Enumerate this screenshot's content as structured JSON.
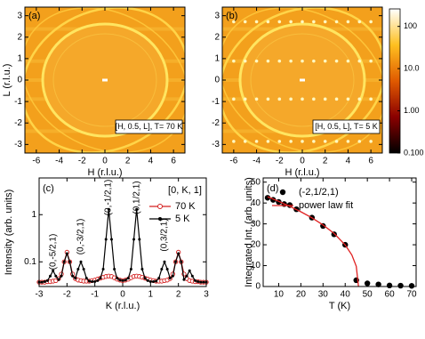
{
  "chart_data": [
    {
      "type": "heatmap",
      "panel_label": "(a)",
      "annotation": "[H, 0.5, L], T= 70 K",
      "x_label": "H (r.l.u.)",
      "y_label": "L (r.l.u.)",
      "xlim": [
        -7,
        7
      ],
      "ylim": [
        -3.4,
        3.4
      ],
      "xticks": [
        -6,
        -4,
        -2,
        0,
        2,
        4,
        6
      ],
      "yticks": [
        -3,
        -2,
        -1,
        0,
        1,
        2,
        3
      ]
    },
    {
      "type": "heatmap",
      "panel_label": "(b)",
      "annotation": "[H, 0.5, L], T= 5 K",
      "x_label": "H (r.l.u.)",
      "xlim": [
        -7,
        7
      ],
      "ylim": [
        -3.4,
        3.4
      ],
      "xticks": [
        -6,
        -4,
        -2,
        0,
        2,
        4,
        6
      ],
      "yticks": [
        -3,
        -2,
        -1,
        0,
        1,
        2,
        3
      ],
      "colorbar": {
        "log": true,
        "lim": [
          0.1,
          260
        ],
        "ticks": [
          {
            "value": 0.1,
            "label": "0.100"
          },
          {
            "value": 1,
            "label": "1.00"
          },
          {
            "value": 10,
            "label": "10.0"
          },
          100
        ]
      }
    },
    {
      "type": "line",
      "panel_label": "(c)",
      "x_label": "K (r.l.u.)",
      "y_label": "Intensity (arb. units)",
      "legend_title": "[0, K, 1]",
      "log_y": true,
      "xlim": [
        -3,
        3
      ],
      "ylim": [
        0.03,
        6
      ],
      "xticks": [
        -3,
        -2,
        -1,
        0,
        1,
        2,
        3
      ],
      "yticks": [
        0.1,
        1
      ],
      "annotations": [
        "(0,-5/2,1)",
        "(0,-3/2,1)",
        "(0,-1/2,1)",
        "(0,1/2,1)",
        "(0,3/2,1)"
      ],
      "x": [
        -3,
        -2.9,
        -2.8,
        -2.7,
        -2.6,
        -2.5,
        -2.4,
        -2.3,
        -2.2,
        -2.1,
        -2,
        -1.9,
        -1.8,
        -1.7,
        -1.6,
        -1.5,
        -1.4,
        -1.3,
        -1.2,
        -1.1,
        -1,
        -0.9,
        -0.8,
        -0.7,
        -0.6,
        -0.5,
        -0.4,
        -0.3,
        -0.2,
        -0.1,
        0,
        0.1,
        0.2,
        0.3,
        0.4,
        0.5,
        0.6,
        0.7,
        0.8,
        0.9,
        1,
        1.1,
        1.2,
        1.3,
        1.4,
        1.5,
        1.6,
        1.7,
        1.8,
        1.9,
        2,
        2.1,
        2.2,
        2.3,
        2.4,
        2.5,
        2.6,
        2.7,
        2.8,
        2.9,
        3
      ],
      "series": [
        {
          "name": "70 K",
          "color": "#d42020",
          "values": [
            0.037,
            0.037,
            0.037,
            0.038,
            0.038,
            0.039,
            0.04,
            0.044,
            0.055,
            0.1,
            0.16,
            0.1,
            0.055,
            0.044,
            0.041,
            0.04,
            0.039,
            0.039,
            0.039,
            0.04,
            0.041,
            0.043,
            0.045,
            0.047,
            0.049,
            0.05,
            0.049,
            0.046,
            0.043,
            0.041,
            0.04,
            0.041,
            0.043,
            0.046,
            0.049,
            0.05,
            0.049,
            0.047,
            0.045,
            0.043,
            0.041,
            0.04,
            0.039,
            0.039,
            0.039,
            0.04,
            0.041,
            0.044,
            0.055,
            0.1,
            0.16,
            0.1,
            0.055,
            0.044,
            0.04,
            0.039,
            0.038,
            0.038,
            0.037,
            0.037,
            0.037
          ]
        },
        {
          "name": "5 K",
          "color": "#000000",
          "values": [
            0.037,
            0.037,
            0.038,
            0.04,
            0.05,
            0.065,
            0.05,
            0.042,
            0.05,
            0.1,
            0.15,
            0.1,
            0.05,
            0.045,
            0.07,
            0.1,
            0.07,
            0.045,
            0.039,
            0.038,
            0.038,
            0.04,
            0.045,
            0.07,
            0.3,
            1.3,
            0.3,
            0.07,
            0.045,
            0.041,
            0.04,
            0.041,
            0.045,
            0.07,
            0.3,
            1.3,
            0.3,
            0.07,
            0.045,
            0.04,
            0.038,
            0.038,
            0.039,
            0.045,
            0.07,
            0.1,
            0.07,
            0.045,
            0.05,
            0.1,
            0.15,
            0.1,
            0.042,
            0.05,
            0.065,
            0.05,
            0.04,
            0.038,
            0.037,
            0.037,
            0.037
          ]
        }
      ]
    },
    {
      "type": "scatter",
      "panel_label": "(d)",
      "x_label": "T (K)",
      "y_label": "Integrated Int. (arb. units)",
      "xlim": [
        3,
        72
      ],
      "ylim": [
        0,
        52
      ],
      "xticks": [
        10,
        20,
        30,
        40,
        50,
        60,
        70
      ],
      "yticks": [
        0,
        10,
        20,
        30,
        40,
        50
      ],
      "series": [
        {
          "name": "(-2,1/2,1)",
          "color": "#000000",
          "x": [
            5,
            7.5,
            10,
            12.5,
            15,
            18,
            25,
            30,
            35,
            40,
            45,
            50,
            55,
            60,
            65,
            70
          ],
          "values": [
            42.5,
            41.5,
            40.5,
            39.5,
            39,
            37,
            33,
            29,
            25,
            20,
            3,
            1.5,
            1,
            0.5,
            0.4,
            0.3
          ]
        },
        {
          "name": "power law fit",
          "color": "#e02020",
          "line": true,
          "x": [
            5,
            10,
            15,
            20,
            25,
            30,
            35,
            40,
            43,
            45,
            46
          ],
          "values": [
            43,
            40.8,
            38.4,
            35.8,
            32.9,
            29.5,
            25.4,
            19.9,
            15.1,
            9.7,
            0
          ]
        }
      ]
    }
  ]
}
